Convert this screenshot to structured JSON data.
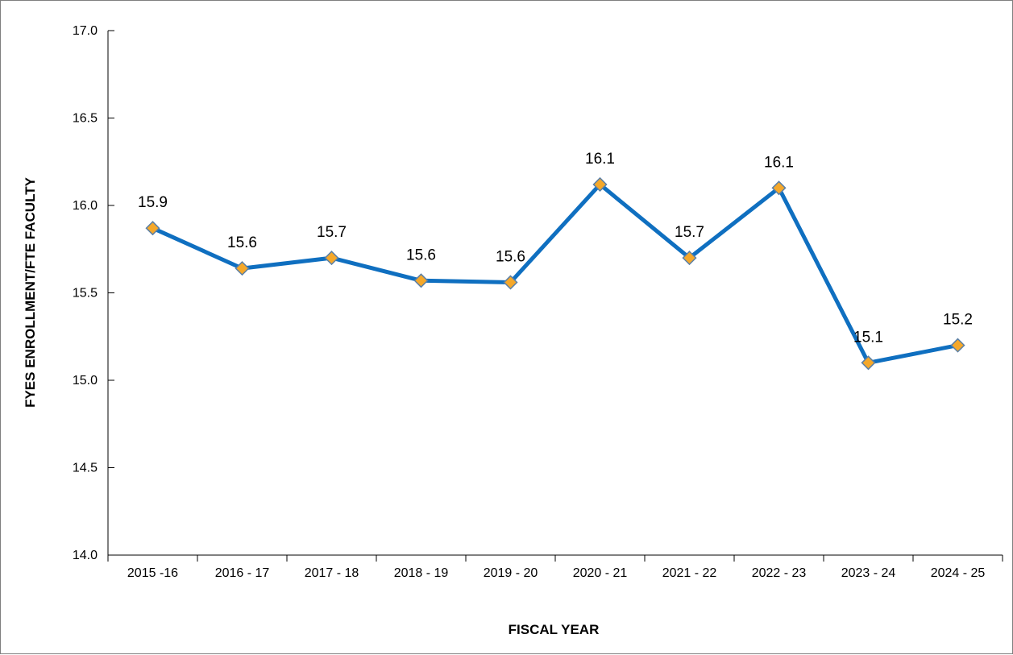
{
  "chart_data": {
    "type": "line",
    "title": "",
    "xlabel": "FISCAL YEAR",
    "ylabel": "FYES ENROLLMENT/FTE FACULTY",
    "categories": [
      "2015 -16",
      "2016 - 17",
      "2017 - 18",
      "2018 - 19",
      "2019 - 20",
      "2020 - 21",
      "2021 - 22",
      "2022 - 23",
      "2023 - 24",
      "2024 - 25"
    ],
    "series": [
      {
        "values": [
          15.87,
          15.64,
          15.7,
          15.57,
          15.56,
          16.12,
          15.7,
          16.1,
          15.1,
          15.2
        ],
        "labels": [
          "15.9",
          "15.6",
          "15.7",
          "15.6",
          "15.6",
          "16.1",
          "15.7",
          "16.1",
          "15.1",
          "15.2"
        ]
      }
    ],
    "ylim": [
      14.0,
      17.0
    ],
    "yticks": [
      "14.0",
      "14.5",
      "15.0",
      "15.5",
      "16.0",
      "16.5",
      "17.0"
    ],
    "grid": false,
    "legend": "none",
    "colors": {
      "line": "#0f6fc0",
      "marker_fill": "#f5a82a",
      "marker_stroke": "#5a7fa6",
      "axis": "#000000"
    }
  }
}
